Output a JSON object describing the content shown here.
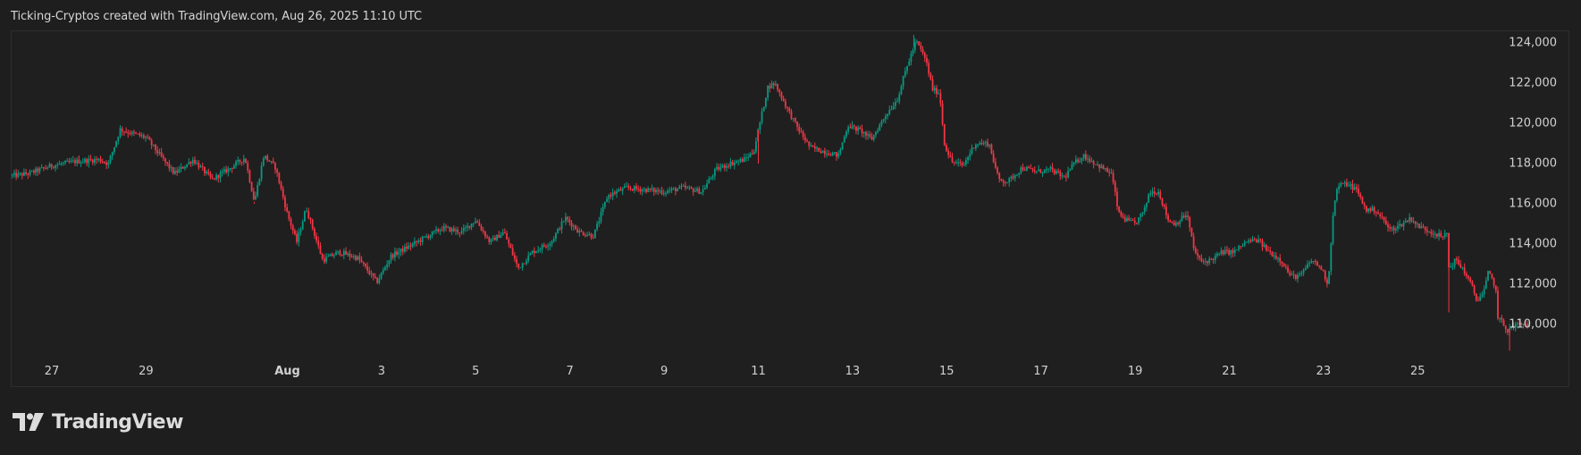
{
  "header": {
    "attribution": "Ticking-Cryptos created with TradingView.com, Aug 26, 2025 11:10 UTC"
  },
  "brand": {
    "logo_text": "TradingView",
    "icon": "tradingview-logo-icon"
  },
  "colors": {
    "background": "#1e1e1e",
    "frame_border": "#2e2e2e",
    "up_candle": "#089981",
    "down_candle": "#f23645",
    "text": "#d1d1d1"
  },
  "chart_data": {
    "type": "candlestick",
    "title": "",
    "xlabel": "",
    "ylabel": "",
    "ylim": [
      108000,
      125000
    ],
    "grid": false,
    "y_ticks": [
      "124,000",
      "122,000",
      "120,000",
      "118,000",
      "116,000",
      "114,000",
      "112,000",
      "110,000"
    ],
    "y_tick_values": [
      124000,
      122000,
      120000,
      118000,
      116000,
      114000,
      112000,
      110000
    ],
    "x_ticks": [
      {
        "label": "27",
        "day": 0,
        "bold": false
      },
      {
        "label": "29",
        "day": 2,
        "bold": false
      },
      {
        "label": "Aug",
        "day": 5,
        "bold": true
      },
      {
        "label": "3",
        "day": 7,
        "bold": false
      },
      {
        "label": "5",
        "day": 9,
        "bold": false
      },
      {
        "label": "7",
        "day": 11,
        "bold": false
      },
      {
        "label": "9",
        "day": 13,
        "bold": false
      },
      {
        "label": "11",
        "day": 15,
        "bold": false
      },
      {
        "label": "13",
        "day": 17,
        "bold": false
      },
      {
        "label": "15",
        "day": 19,
        "bold": false
      },
      {
        "label": "17",
        "day": 21,
        "bold": false
      },
      {
        "label": "19",
        "day": 23,
        "bold": false
      },
      {
        "label": "21",
        "day": 25,
        "bold": false
      },
      {
        "label": "23",
        "day": 27,
        "bold": false
      },
      {
        "label": "25",
        "day": 29,
        "bold": false
      }
    ],
    "x_range_days": "Jul 26 to Aug 26, 2025",
    "series": [
      {
        "name": "price_path_close_estimates",
        "points": [
          [
            -0.84,
            117400
          ],
          [
            -0.5,
            117500
          ],
          [
            0,
            117900
          ],
          [
            0.5,
            118100
          ],
          [
            1,
            118200
          ],
          [
            1.2,
            118000
          ],
          [
            1.45,
            119700
          ],
          [
            1.7,
            119500
          ],
          [
            2,
            119300
          ],
          [
            2.3,
            118400
          ],
          [
            2.6,
            117500
          ],
          [
            3,
            118200
          ],
          [
            3.4,
            117200
          ],
          [
            3.8,
            117800
          ],
          [
            4.1,
            118300
          ],
          [
            4.3,
            116100
          ],
          [
            4.5,
            118400
          ],
          [
            4.75,
            117800
          ],
          [
            5,
            115500
          ],
          [
            5.2,
            114100
          ],
          [
            5.4,
            115800
          ],
          [
            5.75,
            113200
          ],
          [
            6.1,
            113600
          ],
          [
            6.5,
            113300
          ],
          [
            6.9,
            112100
          ],
          [
            7.2,
            113400
          ],
          [
            7.6,
            113900
          ],
          [
            7.9,
            114300
          ],
          [
            8.3,
            114800
          ],
          [
            8.7,
            114600
          ],
          [
            9,
            115200
          ],
          [
            9.3,
            114100
          ],
          [
            9.6,
            114600
          ],
          [
            9.9,
            112800
          ],
          [
            10.2,
            113600
          ],
          [
            10.6,
            114100
          ],
          [
            10.9,
            115300
          ],
          [
            11.2,
            114600
          ],
          [
            11.5,
            114400
          ],
          [
            11.8,
            116400
          ],
          [
            12.2,
            116800
          ],
          [
            12.6,
            116700
          ],
          [
            13,
            116600
          ],
          [
            13.4,
            116800
          ],
          [
            13.8,
            116600
          ],
          [
            14.1,
            117700
          ],
          [
            14.4,
            118000
          ],
          [
            14.7,
            118200
          ],
          [
            14.9,
            118600
          ],
          [
            15.2,
            121800
          ],
          [
            15.35,
            122000
          ],
          [
            15.6,
            120800
          ],
          [
            15.8,
            119900
          ],
          [
            16.1,
            118800
          ],
          [
            16.4,
            118600
          ],
          [
            16.7,
            118400
          ],
          [
            16.9,
            119900
          ],
          [
            17.2,
            119600
          ],
          [
            17.4,
            119200
          ],
          [
            17.7,
            120400
          ],
          [
            17.95,
            121200
          ],
          [
            18.15,
            122800
          ],
          [
            18.35,
            124100
          ],
          [
            18.55,
            123200
          ],
          [
            18.7,
            121700
          ],
          [
            18.85,
            121500
          ],
          [
            18.95,
            119000
          ],
          [
            19.1,
            118100
          ],
          [
            19.35,
            117900
          ],
          [
            19.6,
            119000
          ],
          [
            19.9,
            119000
          ],
          [
            20.1,
            117200
          ],
          [
            20.3,
            117100
          ],
          [
            20.6,
            117800
          ],
          [
            20.9,
            117600
          ],
          [
            21.2,
            117700
          ],
          [
            21.5,
            117300
          ],
          [
            21.7,
            118000
          ],
          [
            21.9,
            118400
          ],
          [
            22.1,
            118100
          ],
          [
            22.35,
            117700
          ],
          [
            22.5,
            117500
          ],
          [
            22.65,
            115500
          ],
          [
            22.8,
            115200
          ],
          [
            23,
            115000
          ],
          [
            23.2,
            115700
          ],
          [
            23.3,
            116600
          ],
          [
            23.5,
            116600
          ],
          [
            23.7,
            115200
          ],
          [
            23.85,
            115000
          ],
          [
            24.1,
            115500
          ],
          [
            24.25,
            113700
          ],
          [
            24.4,
            113100
          ],
          [
            24.6,
            113200
          ],
          [
            24.85,
            113600
          ],
          [
            25.1,
            113600
          ],
          [
            25.35,
            114100
          ],
          [
            25.6,
            114200
          ],
          [
            25.85,
            113600
          ],
          [
            26.1,
            113200
          ],
          [
            26.3,
            112400
          ],
          [
            26.5,
            112400
          ],
          [
            26.75,
            113200
          ],
          [
            26.95,
            112800
          ],
          [
            27.1,
            112000
          ],
          [
            27.2,
            115500
          ],
          [
            27.3,
            116900
          ],
          [
            27.5,
            117000
          ],
          [
            27.7,
            116700
          ],
          [
            27.9,
            115700
          ],
          [
            28.1,
            115700
          ],
          [
            28.3,
            115100
          ],
          [
            28.4,
            114700
          ],
          [
            28.6,
            114900
          ],
          [
            28.85,
            115300
          ],
          [
            29,
            114900
          ],
          [
            29.2,
            114700
          ],
          [
            29.4,
            114500
          ],
          [
            29.55,
            114300
          ],
          [
            29.62,
            114600
          ],
          [
            29.66,
            112800
          ],
          [
            29.8,
            113200
          ],
          [
            29.95,
            112800
          ],
          [
            30.15,
            111900
          ],
          [
            30.25,
            111200
          ],
          [
            30.4,
            111600
          ],
          [
            30.5,
            112600
          ],
          [
            30.65,
            111900
          ],
          [
            30.7,
            110400
          ],
          [
            30.9,
            109700
          ],
          [
            31.1,
            110000
          ],
          [
            31.3,
            110000
          ],
          [
            31.4,
            110000
          ]
        ]
      },
      {
        "name": "notable_wicks",
        "points": [
          [
            4.3,
            116000
          ],
          [
            18.3,
            124400
          ],
          [
            29.66,
            110600
          ],
          [
            30.95,
            108700
          ],
          [
            15.0,
            118000
          ]
        ]
      }
    ],
    "annotations": []
  }
}
